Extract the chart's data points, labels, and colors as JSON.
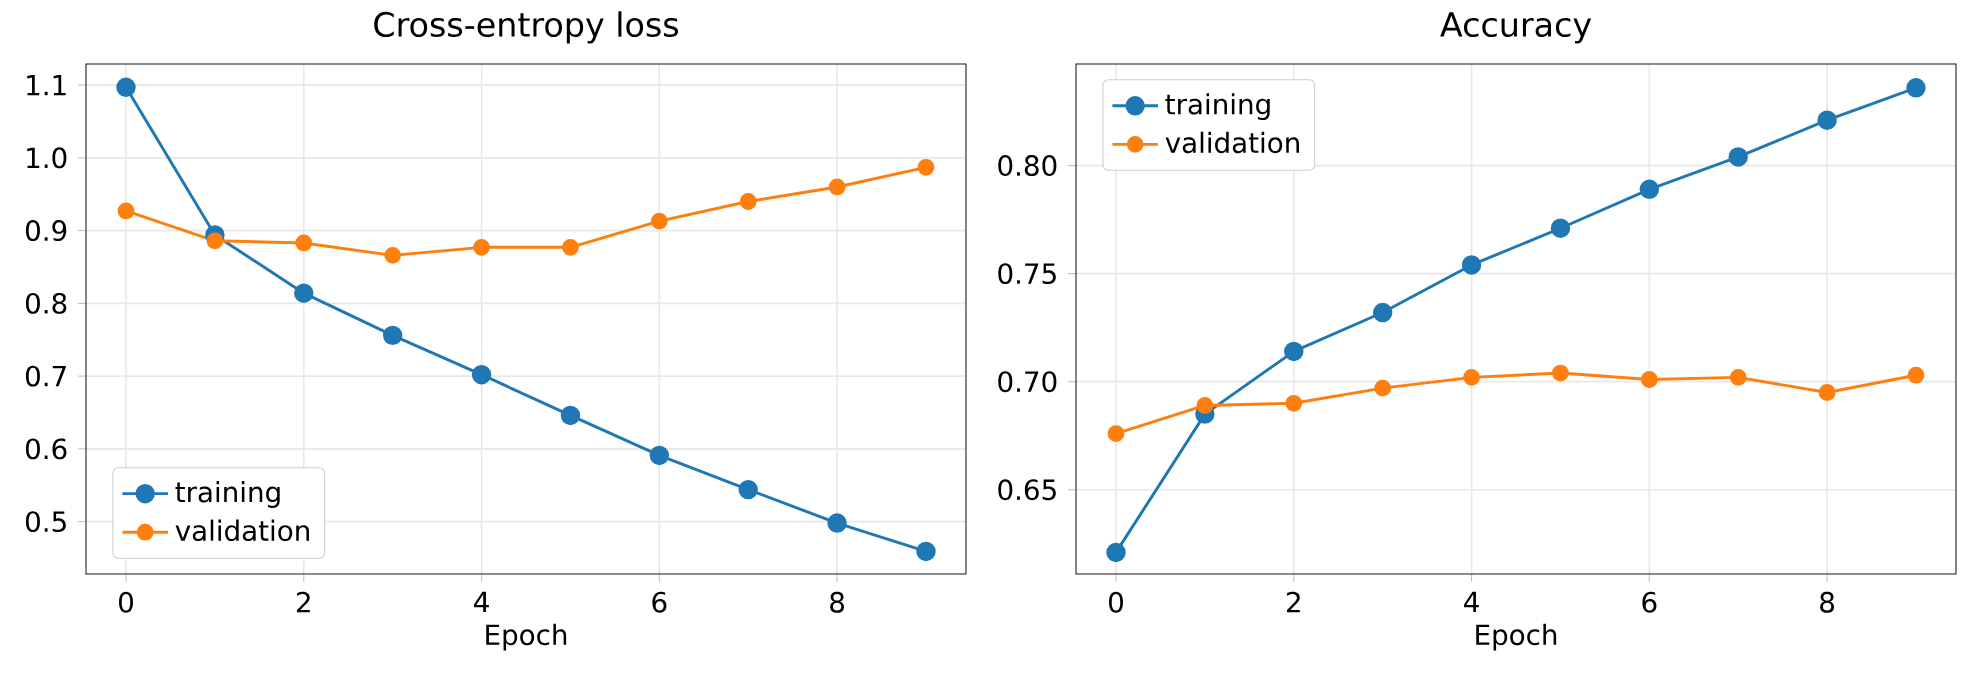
{
  "chart_data": [
    {
      "type": "line",
      "title": "Cross-entropy loss",
      "xlabel": "Epoch",
      "x": [
        0,
        1,
        2,
        3,
        4,
        5,
        6,
        7,
        8,
        9
      ],
      "xlim": [
        -0.45,
        9.45
      ],
      "ylim": [
        0.428,
        1.129
      ],
      "xticks": [
        0,
        2,
        4,
        6,
        8
      ],
      "yticks": [
        {
          "value": 0.5,
          "label": "0.5"
        },
        {
          "value": 0.6,
          "label": "0.6"
        },
        {
          "value": 0.7,
          "label": "0.7"
        },
        {
          "value": 0.8,
          "label": "0.8"
        },
        {
          "value": 0.9,
          "label": "0.9"
        },
        {
          "value": 1.0,
          "label": "1.0"
        },
        {
          "value": 1.1,
          "label": "1.1"
        }
      ],
      "grid": true,
      "legend": "bottom left",
      "marker": "circle",
      "line_style": "solid",
      "series": [
        {
          "name": "training",
          "color": "#1f77b4",
          "values": [
            1.097,
            0.894,
            0.814,
            0.756,
            0.702,
            0.646,
            0.591,
            0.544,
            0.498,
            0.459
          ]
        },
        {
          "name": "validation",
          "color": "#ff7f0e",
          "values": [
            0.927,
            0.886,
            0.883,
            0.866,
            0.877,
            0.877,
            0.913,
            0.94,
            0.96,
            0.987
          ]
        }
      ]
    },
    {
      "type": "line",
      "title": "Accuracy",
      "xlabel": "Epoch",
      "x": [
        0,
        1,
        2,
        3,
        4,
        5,
        6,
        7,
        8,
        9
      ],
      "xlim": [
        -0.45,
        9.45
      ],
      "ylim": [
        0.611,
        0.847
      ],
      "xticks": [
        0,
        2,
        4,
        6,
        8
      ],
      "yticks": [
        0.65,
        {
          "value": 0.7,
          "label": "0.70"
        },
        0.75,
        {
          "value": 0.8,
          "label": "0.80"
        }
      ],
      "grid": true,
      "legend": "top left",
      "marker": "circle",
      "line_style": "solid",
      "series": [
        {
          "name": "training",
          "color": "#1f77b4",
          "values": [
            0.621,
            0.685,
            0.714,
            0.732,
            0.754,
            0.771,
            0.789,
            0.804,
            0.821,
            0.836
          ]
        },
        {
          "name": "validation",
          "color": "#ff7f0e",
          "values": [
            0.676,
            0.689,
            0.69,
            0.697,
            0.702,
            0.704,
            0.701,
            0.702,
            0.695,
            0.703
          ]
        }
      ]
    }
  ]
}
